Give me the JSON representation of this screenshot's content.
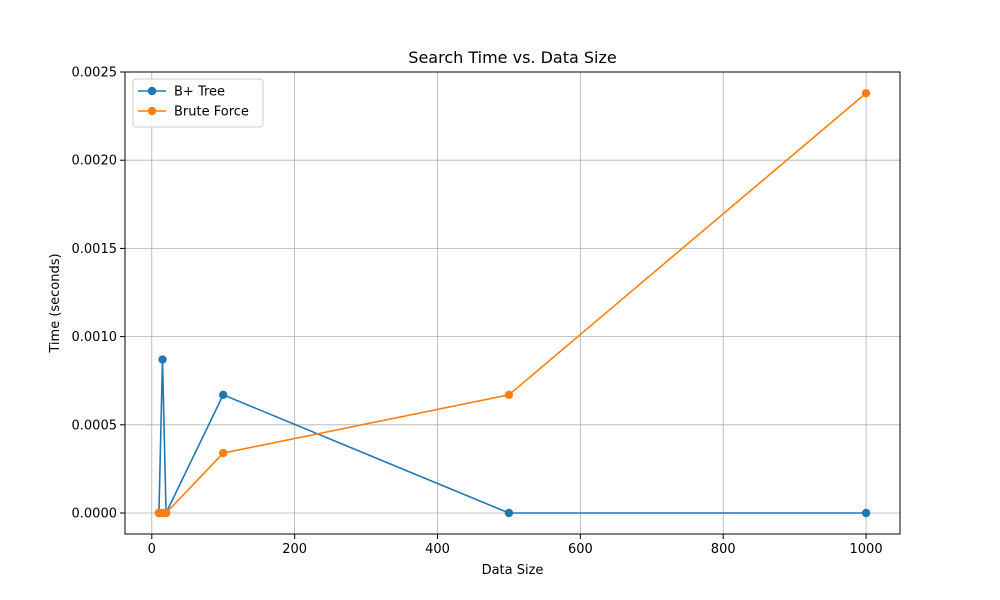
{
  "chart_data": {
    "type": "line",
    "title": "Search Time vs. Data Size",
    "xlabel": "Data Size",
    "ylabel": "Time (seconds)",
    "xlim": [
      -37.5,
      1047.5
    ],
    "ylim": [
      -0.000119,
      0.0025
    ],
    "xticks": [
      0,
      200,
      400,
      600,
      800,
      1000
    ],
    "xtick_labels": [
      "0",
      "200",
      "400",
      "600",
      "800",
      "1000"
    ],
    "yticks": [
      0.0,
      0.0005,
      0.001,
      0.0015,
      0.002,
      0.0025
    ],
    "ytick_labels": [
      "0.0000",
      "0.0005",
      "0.0010",
      "0.0015",
      "0.0020",
      "0.0025"
    ],
    "grid": true,
    "legend_position": "top-left",
    "series": [
      {
        "name": "B+ Tree",
        "color": "#1f77b4",
        "x": [
          10,
          15,
          20,
          100,
          500,
          1000
        ],
        "y": [
          0.0,
          0.00087,
          0.0,
          0.00067,
          0.0,
          0.0
        ]
      },
      {
        "name": "Brute Force",
        "color": "#ff7f0e",
        "x": [
          10,
          15,
          20,
          100,
          500,
          1000
        ],
        "y": [
          0.0,
          0.0,
          0.0,
          0.00034,
          0.00067,
          0.00238
        ]
      }
    ]
  }
}
